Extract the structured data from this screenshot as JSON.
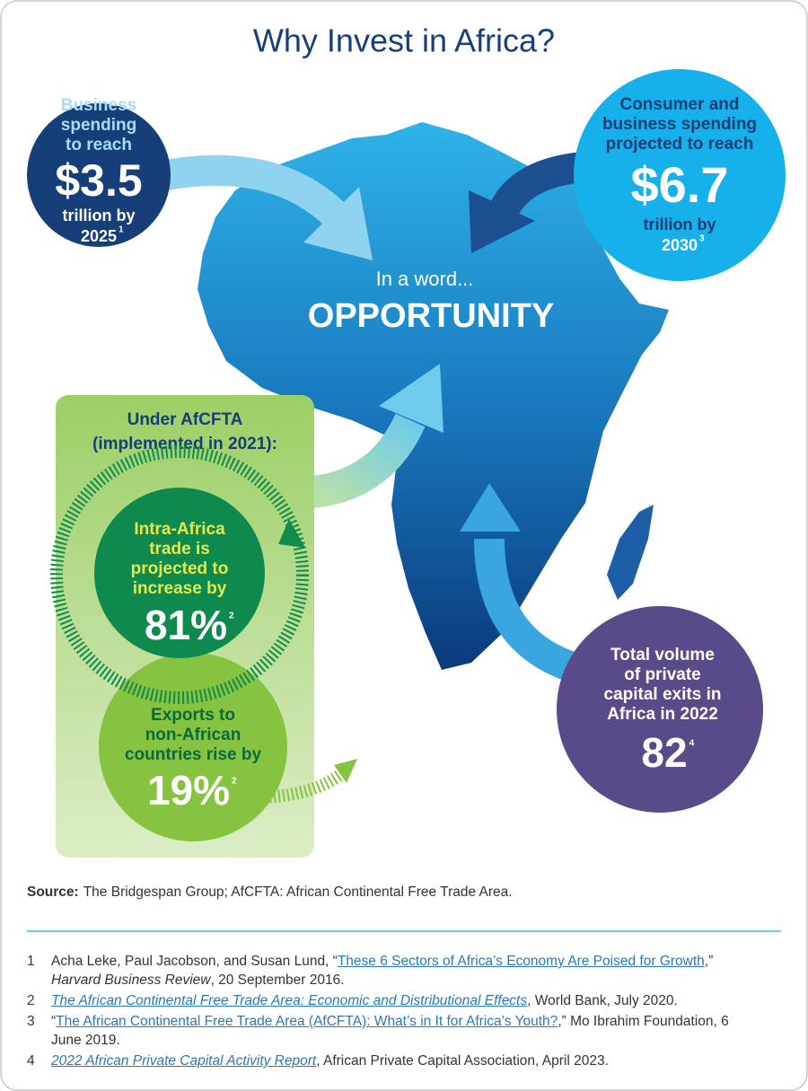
{
  "title": "Why Invest in Africa?",
  "center": {
    "lead": "In a word...",
    "headline": "OPPORTUNITY"
  },
  "callouts": [
    {
      "lines": [
        "Business",
        "spending",
        "to reach"
      ],
      "figure": "$3.5",
      "after": [
        "trillion by",
        "2025"
      ],
      "ref": "1"
    },
    {
      "lines": [
        "Consumer and",
        "business spending",
        "projected to reach"
      ],
      "figure": "$6.7",
      "after": [
        "trillion by",
        "2030"
      ],
      "ref": "3"
    },
    {
      "lines": [
        "Total volume",
        "of private",
        "capital exits in",
        "Africa in 2022"
      ],
      "figure": "82",
      "ref": "4"
    }
  ],
  "afcfta": {
    "heading": [
      "Under AfCFTA",
      "(implemented in 2021):"
    ],
    "stats": [
      {
        "lines": [
          "Intra-Africa",
          "trade is",
          "projected to",
          "increase by"
        ],
        "figure": "81%",
        "ref": "2"
      },
      {
        "lines": [
          "Exports to",
          "non-African",
          "countries rise by"
        ],
        "figure": "19%",
        "ref": "2"
      }
    ]
  },
  "source": {
    "label": "Source:",
    "text": "The Bridgespan Group; AfCFTA: African Continental Free Trade Area."
  },
  "footnotes": [
    {
      "number": "1",
      "segments": [
        {
          "text": "Acha Leke, Paul Jacobson, and Susan Lund, “",
          "style": "plain"
        },
        {
          "text": "These 6 Sectors of Africa’s Economy Are Poised for Growth",
          "style": "link"
        },
        {
          "text": ",” ",
          "style": "plain"
        },
        {
          "text": "Harvard Business Review",
          "style": "italic"
        },
        {
          "text": ", 20 September 2016.",
          "style": "plain"
        }
      ]
    },
    {
      "number": "2",
      "segments": [
        {
          "text": "The African Continental Free Trade Area: Economic and Distributional Effects",
          "style": "italic-link"
        },
        {
          "text": ", World Bank, July 2020.",
          "style": "plain"
        }
      ]
    },
    {
      "number": "3",
      "segments": [
        {
          "text": "“",
          "style": "plain"
        },
        {
          "text": "The African Continental Free Trade Area (AfCFTA): What’s in It for Africa’s Youth?",
          "style": "link"
        },
        {
          "text": ",” Mo Ibrahim Foundation, 6 June 2019.",
          "style": "plain"
        }
      ]
    },
    {
      "number": "4",
      "segments": [
        {
          "text": "2022 African Private Capital Activity Report",
          "style": "italic-link"
        },
        {
          "text": ", African Private Capital Association, April 2023.",
          "style": "plain"
        }
      ]
    }
  ]
}
